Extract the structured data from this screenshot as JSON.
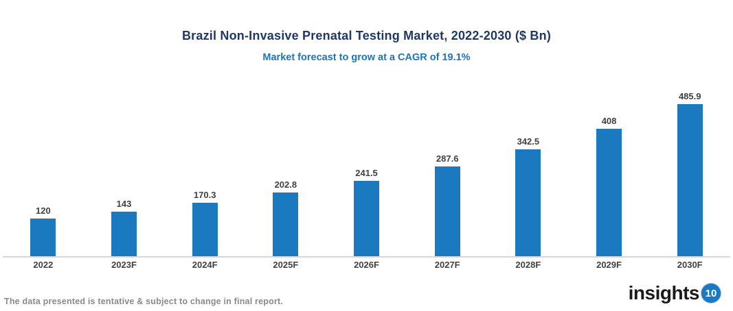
{
  "header": {
    "title": "Brazil Non-Invasive Prenatal Testing Market, 2022-2030 ($ Bn)",
    "subtitle": "Market forecast to grow at a CAGR of 19.1%"
  },
  "chart_data": {
    "type": "bar",
    "categories": [
      "2022",
      "2023F",
      "2024F",
      "2025F",
      "2026F",
      "2027F",
      "2028F",
      "2029F",
      "2030F"
    ],
    "values": [
      120,
      143,
      170.3,
      202.8,
      241.5,
      287.6,
      342.5,
      408,
      485.9
    ],
    "value_labels": [
      "120",
      "143",
      "170.3",
      "202.8",
      "241.5",
      "287.6",
      "342.5",
      "408",
      "485.9"
    ],
    "title": "Brazil Non-Invasive Prenatal Testing Market, 2022-2030 ($ Bn)",
    "subtitle": "Market forecast to grow at a CAGR of 19.1%",
    "xlabel": "",
    "ylabel": "",
    "ylim": [
      0,
      500
    ],
    "grid": false,
    "legend": "none",
    "bar_color": "#1B79BF"
  },
  "footer": {
    "note": "The data presented is tentative & subject to change in final report.",
    "logo_text": "insights",
    "logo_badge": "10"
  },
  "colors": {
    "title": "#1F3864",
    "subtitle": "#1B75BC",
    "bar": "#1B79BF",
    "axis_line": "#D8D8D8",
    "data_label": "#404040",
    "category_label": "#404040",
    "footer_note": "#8A8A8A",
    "logo_badge_bg": "#1879C4"
  }
}
